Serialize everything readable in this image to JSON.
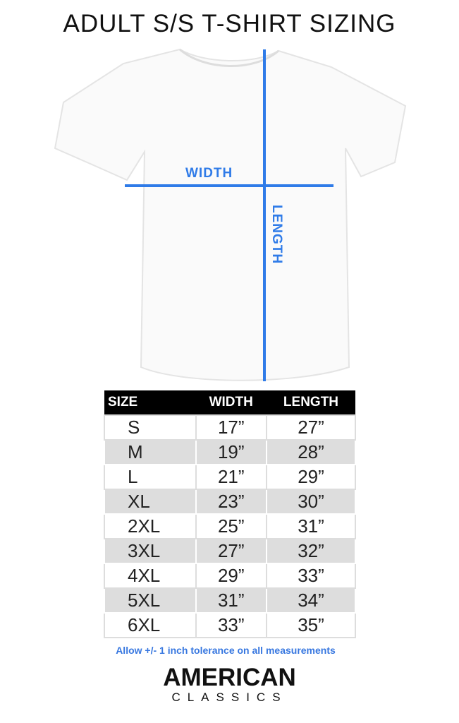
{
  "title": "ADULT S/S T-SHIRT SIZING",
  "diagram": {
    "width_label": "WIDTH",
    "length_label": "LENGTH",
    "line_color": "#2f7be8"
  },
  "chart_data": {
    "type": "table",
    "columns": [
      "SIZE",
      "WIDTH",
      "LENGTH"
    ],
    "rows": [
      [
        "S",
        "17”",
        "27”"
      ],
      [
        "M",
        "19”",
        "28”"
      ],
      [
        "L",
        "21”",
        "29”"
      ],
      [
        "XL",
        "23”",
        "30”"
      ],
      [
        "2XL",
        "25”",
        "31”"
      ],
      [
        "3XL",
        "27”",
        "32”"
      ],
      [
        "4XL",
        "29”",
        "33”"
      ],
      [
        "5XL",
        "31”",
        "34”"
      ],
      [
        "6XL",
        "33”",
        "35”"
      ]
    ]
  },
  "note": "Allow +/- 1 inch tolerance on all measurements",
  "logo": {
    "line1": "AMERICAN",
    "line2": "CLASSICS"
  }
}
